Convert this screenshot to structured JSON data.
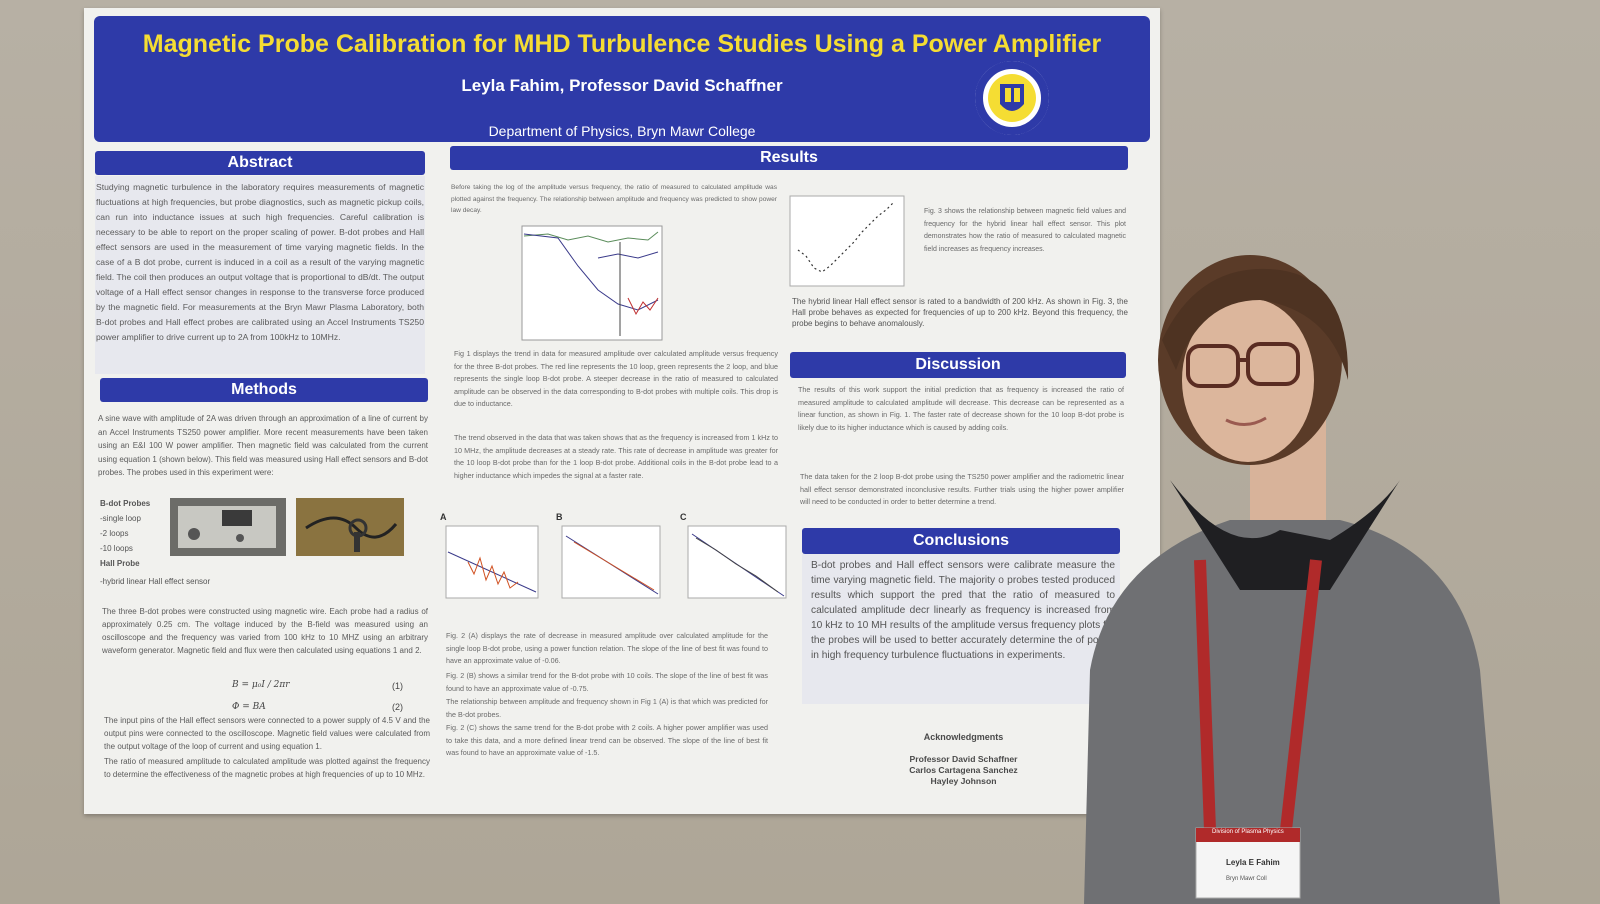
{
  "poster": {
    "title": "Magnetic Probe Calibration for MHD Turbulence Studies Using a Power Amplifier",
    "authors": "Leyla Fahim, Professor David Schaffner",
    "department": "Department of Physics, Bryn Mawr College",
    "seal_icon": "bryn-mawr-seal-icon",
    "sections": {
      "abstract": {
        "heading": "Abstract",
        "text": "Studying magnetic turbulence in the laboratory requires measurements of magnetic fluctuations at high frequencies, but probe diagnostics, such as magnetic pickup coils, can run into inductance issues at such high frequencies. Careful calibration is necessary to be able to report on the proper scaling of power. B-dot probes and Hall effect sensors are used in the measurement of time varying magnetic fields. In the case of a B dot probe, current is induced in a coil as a result of the varying magnetic field. The coil then produces an output voltage that is proportional to dB/dt. The output voltage of a Hall effect sensor changes in response to the transverse force produced by the magnetic field. For measurements at the Bryn Mawr Plasma Laboratory, both B-dot probes and Hall effect probes are calibrated using an Accel Instruments TS250 power amplifier to drive current up to 2A from 100kHz to 10MHz."
      },
      "methods": {
        "heading": "Methods",
        "text1": "A sine wave with amplitude of 2A was driven through an approximation of a line of current by an Accel Instruments TS250 power amplifier. More recent measurements have been taken using an E&I 100 W power amplifier. Then magnetic field was calculated from the current using equation 1 (shown below). This field was measured using Hall effect sensors and B-dot probes. The probes used in this experiment were:",
        "probe_list": [
          "B-dot Probes",
          "-single loop",
          "-2 loops",
          "-10 loops",
          "Hall Probe",
          "-hybrid linear Hall effect sensor"
        ],
        "text2": "The three B-dot probes were constructed using magnetic wire. Each probe had a radius of approximately 0.25 cm. The voltage induced by the B-field was measured using an oscilloscope and the frequency was varied from 100 kHz to 10 MHZ using an arbitrary waveform generator. Magnetic field and flux were then calculated using equations 1 and 2.",
        "eq1": "B = μ₀I / 2πr",
        "eq1_num": "(1)",
        "eq2": "Φ = BA",
        "eq2_num": "(2)",
        "text3": "The input pins of the Hall effect sensors were connected to a power supply of 4.5 V and the output pins were connected to the oscilloscope. Magnetic field values were calculated from the output voltage of the loop of current and using equation 1.",
        "text4": "The ratio of measured amplitude to calculated amplitude was plotted against the frequency to determine the effectiveness of the magnetic probes at high frequencies of up to 10 MHz."
      },
      "results": {
        "heading": "Results",
        "intro": "Before taking the log of the amplitude versus frequency, the ratio of measured to calculated amplitude was plotted against the frequency. The relationship between amplitude and frequency was predicted to show power law decay.",
        "fig1_caption": "Fig 1 displays the trend in data for measured amplitude over calculated amplitude versus frequency for the three B-dot probes. The red line represents the 10 loop, green represents the 2 loop, and blue represents the single loop B-dot probe. A steeper decrease in the ratio of measured to calculated amplitude can be observed in the data corresponding to B-dot probes with multiple coils. This drop is due to inductance.",
        "trend_text": "The trend observed in the data that was taken shows that as the frequency is increased from 1 kHz to 10 MHz, the amplitude decreases at a steady rate. This rate of decrease in amplitude was greater for the 10 loop B-dot probe than for the 1 loop B-dot probe. Additional coils in the B-dot probe lead to a higher inductance which impedes the signal at a faster rate.",
        "fig3_caption": "Fig. 3 shows the relationship between magnetic field values and frequency for the hybrid linear hall effect sensor. This plot demonstrates how the ratio of measured to calculated magnetic field increases as frequency increases.",
        "hall_text": "The hybrid linear Hall effect sensor is rated to a bandwidth of 200 kHz. As shown in Fig. 3, the Hall probe behaves as expected for frequencies of up to 200 kHz. Beyond this frequency, the probe begins to behave anomalously.",
        "panel_labels": [
          "A",
          "B",
          "C"
        ],
        "fig2a": "Fig. 2 (A) displays the rate of decrease in measured amplitude over calculated amplitude for the single loop B-dot probe, using a power function relation. The slope of the line of best fit was found to have an approximate value of -0.06.",
        "fig2b": "Fig. 2 (B) shows a similar trend for the B-dot probe with 10 coils. The slope of the line of best fit was found to have an approximate value of -0.75.",
        "fig2_rel": "The relationship between amplitude and frequency shown in Fig 1 (A) is that which was predicted for the B-dot probes.",
        "fig2c": "Fig. 2 (C) shows the same trend for the B-dot probe with 2 coils. A higher power amplifier was used to take this data, and a more defined linear trend can be observed. The slope of the line of best fit was found to have an approximate value of -1.5."
      },
      "discussion": {
        "heading": "Discussion",
        "text1": "The results of this work support the initial prediction that as frequency is increased the ratio of measured amplitude to calculated amplitude will decrease. This decrease can be represented as a linear function, as shown in Fig. 1. The faster rate of decrease shown for the 10 loop B-dot probe is likely due to its higher inductance which is caused by adding coils.",
        "text2": "The data taken for the 2 loop B-dot probe using the TS250 power amplifier and the radiometric linear hall effect sensor demonstrated inconclusive results. Further trials using the higher power amplifier will need to be conducted in order to better determine a trend."
      },
      "conclusions": {
        "heading": "Conclusions",
        "text": "B-dot probes and Hall effect sensors were calibrate measure the time varying magnetic field. The majority o probes tested produced results which support the pred that the ratio of measured to calculated amplitude decr linearly as frequency is increased from 10 kHz to 10 MH results of the amplitude versus frequency plots for the probes will be used to better accurately determine the of power in high frequency turbulence fluctuations in experiments."
      },
      "acknowledgments": {
        "heading": "Acknowledgments",
        "names": [
          "Professor David Schaffner",
          "Carlos Cartagena Sanchez",
          "Hayley Johnson"
        ]
      }
    }
  },
  "badge": {
    "name": "Leyla E Fahim",
    "school": "Bryn Mawr Coll",
    "header": "Division of Plasma Physics"
  },
  "colors": {
    "banner": "#2e3aa8",
    "title": "#f5dd33",
    "poster_bg": "#f1f1ee",
    "wall": "#b4ac9f"
  }
}
